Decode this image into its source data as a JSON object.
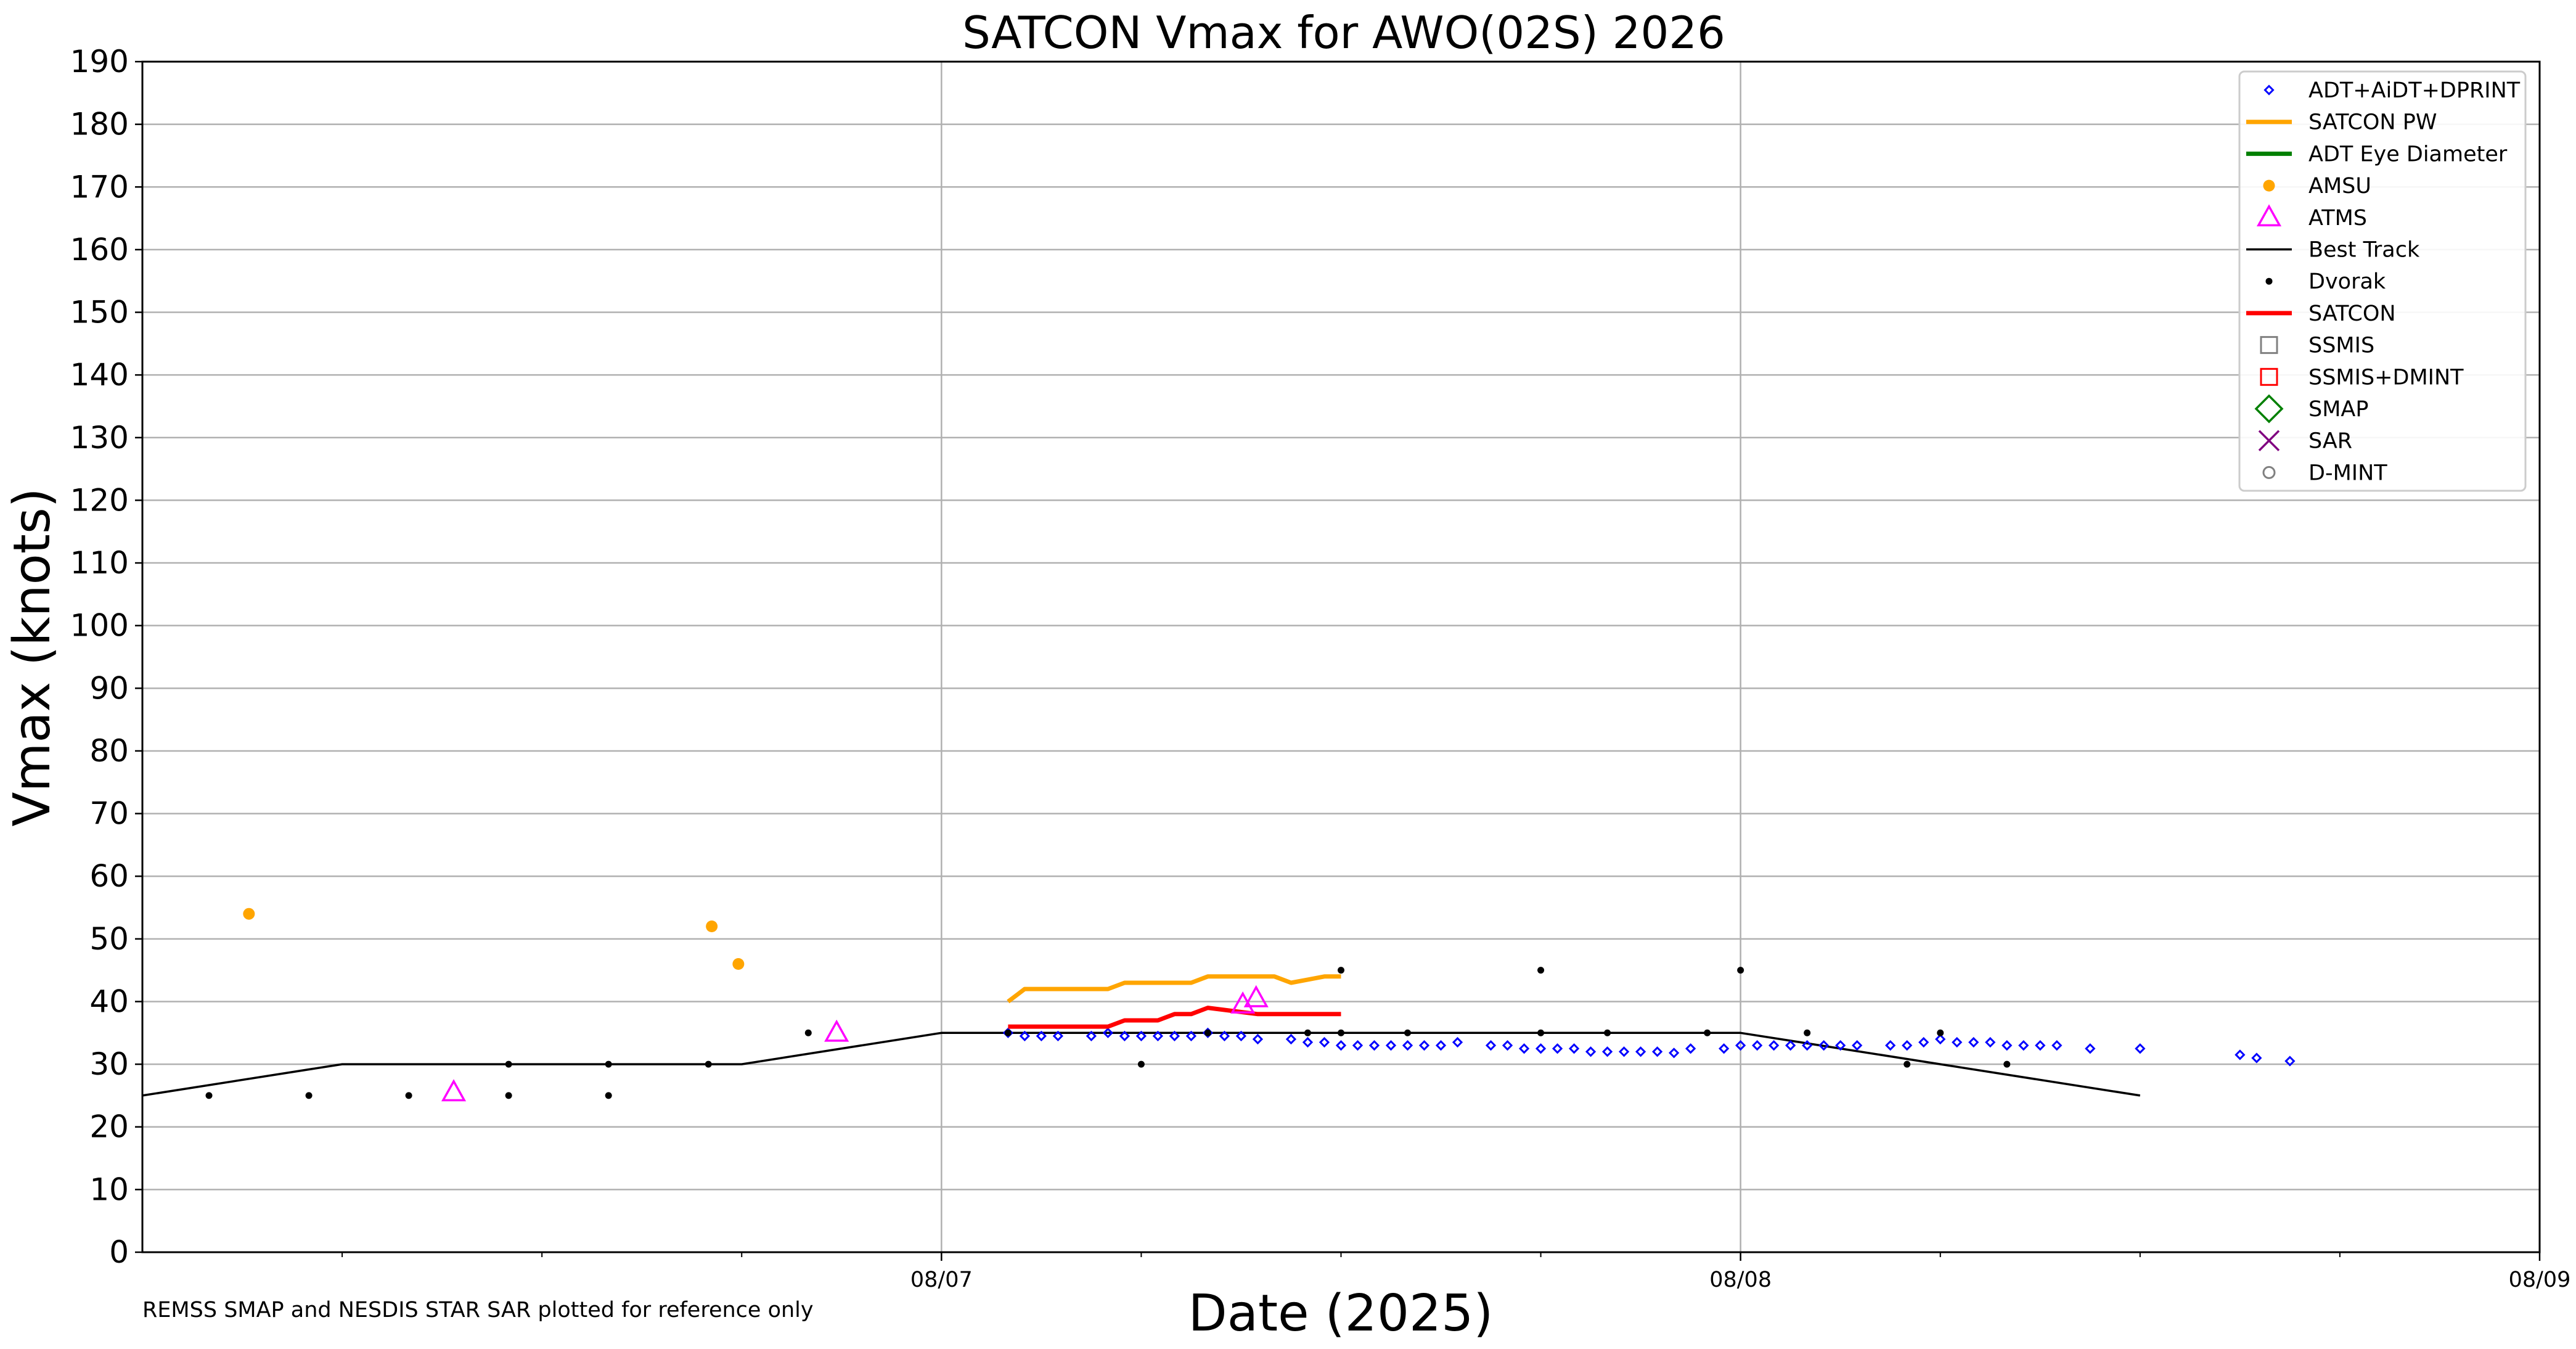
{
  "chart_data": {
    "type": "scatter",
    "title": "SATCON Vmax for AWO(02S) 2026",
    "xlabel": "Date (2025)",
    "ylabel": "Vmax (knots)",
    "footnote": "REMSS SMAP and NESDIS STAR SAR plotted for reference only",
    "ylim": [
      0,
      190
    ],
    "yticks": [
      0,
      10,
      20,
      30,
      40,
      50,
      60,
      70,
      80,
      90,
      100,
      110,
      120,
      130,
      140,
      150,
      160,
      170,
      180,
      190
    ],
    "ytick_labels": [
      "0",
      "10",
      "20",
      "30",
      "40",
      "50",
      "60",
      "70",
      "80",
      "90",
      "100",
      "110",
      "120",
      "130",
      "140",
      "150",
      "160",
      "170",
      "180",
      "190"
    ],
    "xlim_hours": [
      -24,
      48
    ],
    "x_axis_note": "x values are hours relative to 08/07 00Z",
    "xticks_major": [
      {
        "hour": 0,
        "label": "08/07"
      },
      {
        "hour": 24,
        "label": "08/08"
      },
      {
        "hour": 48,
        "label": "08/09"
      }
    ],
    "xticks_minor_hours": [
      -18,
      -12,
      -6,
      6,
      12,
      18,
      30,
      36,
      42
    ],
    "grid": true,
    "legend_position": "top-right",
    "legend": [
      {
        "key": "adt",
        "label": "ADT+AiDT+DPRINT",
        "color": "#0000ff",
        "marker": "diamond-open"
      },
      {
        "key": "satcon_pw",
        "label": "SATCON PW",
        "color": "#ffa500",
        "marker": "line"
      },
      {
        "key": "adt_eye",
        "label": "ADT Eye Diameter",
        "color": "#008000",
        "marker": "line"
      },
      {
        "key": "amsu",
        "label": "AMSU",
        "color": "#ffa500",
        "marker": "dot"
      },
      {
        "key": "atms",
        "label": "ATMS",
        "color": "#ff00ff",
        "marker": "triangle-open"
      },
      {
        "key": "best_track",
        "label": "Best Track",
        "color": "#000000",
        "marker": "thin-line"
      },
      {
        "key": "dvorak",
        "label": "Dvorak",
        "color": "#000000",
        "marker": "small-dot"
      },
      {
        "key": "satcon",
        "label": "SATCON",
        "color": "#ff0000",
        "marker": "line"
      },
      {
        "key": "ssmis",
        "label": "SSMIS",
        "color": "#808080",
        "marker": "square-open"
      },
      {
        "key": "ssmis_dmint",
        "label": "SSMIS+DMINT",
        "color": "#ff0000",
        "marker": "square-open"
      },
      {
        "key": "smap",
        "label": "SMAP",
        "color": "#008000",
        "marker": "diamond-large-open"
      },
      {
        "key": "sar",
        "label": "SAR",
        "color": "#800080",
        "marker": "x"
      },
      {
        "key": "dmint",
        "label": "D-MINT",
        "color": "#808080",
        "marker": "circle-open"
      }
    ],
    "series": {
      "best_track": {
        "x": [
          -24,
          -18,
          -12,
          -6,
          0,
          6,
          12,
          18,
          24,
          30,
          36
        ],
        "y": [
          25,
          30,
          30,
          30,
          35,
          35,
          35,
          35,
          35,
          30,
          25
        ]
      },
      "satcon_pw": {
        "x": [
          2,
          2.5,
          5,
          5.5,
          7.5,
          8,
          10,
          10.5,
          11,
          11.5,
          12
        ],
        "y": [
          40,
          42,
          42,
          43,
          43,
          44,
          44,
          43,
          43.5,
          44,
          44
        ]
      },
      "satcon": {
        "x": [
          2,
          5,
          5.5,
          6.5,
          7,
          7.5,
          8,
          9.5,
          12
        ],
        "y": [
          36,
          36,
          37,
          37,
          38,
          38,
          39,
          38,
          38
        ]
      },
      "amsu": {
        "x": [
          -20.8,
          -6.9,
          -6.1
        ],
        "y": [
          54,
          52,
          46
        ]
      },
      "atms": {
        "x": [
          -14.65,
          -3.15,
          9.05,
          9.45
        ],
        "y": [
          25.5,
          35,
          39.5,
          40.5
        ]
      },
      "dvorak": {
        "x": [
          -22,
          -19,
          -16,
          -13,
          -13,
          -10,
          -10,
          -7,
          -4,
          2,
          6,
          8,
          11,
          12,
          12,
          14,
          18,
          18,
          20,
          23,
          24,
          26,
          29,
          30,
          32
        ],
        "y": [
          25,
          25,
          25,
          25,
          30,
          25,
          30,
          30,
          35,
          35,
          30,
          35,
          35,
          35,
          45,
          35,
          35,
          45,
          35,
          35,
          45,
          35,
          30,
          35,
          30
        ]
      },
      "adt": {
        "x": [
          2,
          2.5,
          3,
          3.5,
          4.5,
          5,
          5.5,
          6,
          6.5,
          7,
          7.5,
          8,
          8.5,
          9,
          9.5,
          10.5,
          11,
          11.5,
          12,
          12.5,
          13,
          13.5,
          14,
          14.5,
          15,
          15.5,
          16.5,
          17,
          17.5,
          18,
          18.5,
          19,
          19.5,
          20,
          20.5,
          21,
          21.5,
          22,
          22.5,
          23.5,
          24,
          24.5,
          25,
          25.5,
          26,
          26.5,
          27,
          27.5,
          28.5,
          29,
          29.5,
          30,
          30.5,
          31,
          31.5,
          32,
          32.5,
          33,
          33.5,
          34.5,
          36,
          39,
          39.5,
          40.5
        ],
        "y": [
          35,
          34.5,
          34.5,
          34.5,
          34.5,
          35,
          34.5,
          34.5,
          34.5,
          34.5,
          34.5,
          35,
          34.5,
          34.5,
          34,
          34,
          33.5,
          33.5,
          33,
          33,
          33,
          33,
          33,
          33,
          33,
          33.5,
          33,
          33,
          32.5,
          32.5,
          32.5,
          32.5,
          32,
          32,
          32,
          32,
          32,
          31.8,
          32.5,
          32.5,
          33,
          33,
          33,
          33,
          33,
          33,
          33,
          33,
          33,
          33,
          33.5,
          34,
          33.5,
          33.5,
          33.5,
          33,
          33,
          33,
          33,
          32.5,
          32.5,
          31.5,
          31,
          30.5
        ]
      }
    }
  }
}
